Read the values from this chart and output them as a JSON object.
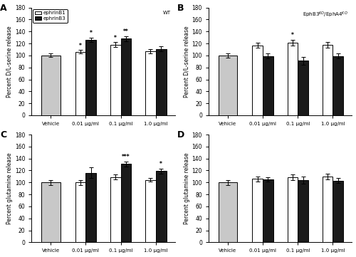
{
  "panel_A": {
    "title": "WT",
    "ylabel": "Percent D/L-serine release",
    "xlabels": [
      "Vehicle",
      "0.01 μg/ml",
      "0.1 μg/ml",
      "1.0 μg/ml"
    ],
    "ephrinB1_values": [
      100,
      106,
      118,
      107
    ],
    "ephrinB1_errors": [
      3,
      3,
      4,
      4
    ],
    "ephrinB3_values": [
      100,
      126,
      128,
      111
    ],
    "ephrinB3_errors": [
      3,
      4,
      4,
      4
    ],
    "vehicle_color": "#c8c8c8",
    "ephrinB1_color": "#ffffff",
    "ephrinB3_color": "#1a1a1a",
    "stars_B1": [
      "",
      "*",
      "*",
      ""
    ],
    "stars_B3": [
      "",
      "*",
      "**",
      ""
    ],
    "show_legend": true
  },
  "panel_B": {
    "title": "EphB3$^{KO}$/EphA4$^{KO}$",
    "ylabel": "Percent D/L-serine release",
    "xlabels": [
      "Vehicle",
      "0.01 μg/ml",
      "0.1 μg/ml",
      "1.0 μg/ml"
    ],
    "ephrinB1_values": [
      100,
      117,
      121,
      118
    ],
    "ephrinB1_errors": [
      4,
      4,
      5,
      5
    ],
    "ephrinB3_values": [
      100,
      99,
      91,
      99
    ],
    "ephrinB3_errors": [
      4,
      4,
      7,
      4
    ],
    "vehicle_color": "#c8c8c8",
    "ephrinB1_color": "#ffffff",
    "ephrinB3_color": "#1a1a1a",
    "stars_B1": [
      "",
      "",
      "*",
      ""
    ],
    "stars_B3": [
      "",
      "",
      "",
      ""
    ],
    "show_legend": false
  },
  "panel_C": {
    "title": "",
    "ylabel": "Percent glutamine release",
    "xlabels": [
      "Vehicle",
      "0.01 μg/ml",
      "0.1 μg/ml",
      "1.0 μg/ml"
    ],
    "ephrinB1_values": [
      100,
      100,
      109,
      104
    ],
    "ephrinB1_errors": [
      4,
      4,
      4,
      3
    ],
    "ephrinB3_values": [
      100,
      116,
      131,
      119
    ],
    "ephrinB3_errors": [
      4,
      9,
      4,
      4
    ],
    "vehicle_color": "#c8c8c8",
    "ephrinB1_color": "#ffffff",
    "ephrinB3_color": "#1a1a1a",
    "stars_B1": [
      "",
      "",
      "",
      ""
    ],
    "stars_B3": [
      "",
      "",
      "***",
      "*"
    ],
    "show_legend": false
  },
  "panel_D": {
    "title": "",
    "ylabel": "Percent glutamine release",
    "xlabels": [
      "Vehicle",
      "0.01 μg/ml",
      "0.1 μg/ml",
      "1.0 μg/ml"
    ],
    "ephrinB1_values": [
      100,
      106,
      109,
      110
    ],
    "ephrinB1_errors": [
      4,
      4,
      5,
      5
    ],
    "ephrinB3_values": [
      100,
      105,
      104,
      103
    ],
    "ephrinB3_errors": [
      4,
      4,
      6,
      4
    ],
    "vehicle_color": "#c8c8c8",
    "ephrinB1_color": "#ffffff",
    "ephrinB3_color": "#1a1a1a",
    "stars_B1": [
      "",
      "",
      "",
      ""
    ],
    "stars_B3": [
      "",
      "",
      "",
      ""
    ],
    "show_legend": false
  },
  "ylim": [
    0,
    180
  ],
  "yticks": [
    0,
    20,
    40,
    60,
    80,
    100,
    120,
    140,
    160,
    180
  ],
  "bar_width": 0.3,
  "legend_labels": [
    "ephrinB1",
    "ephrinB3"
  ]
}
